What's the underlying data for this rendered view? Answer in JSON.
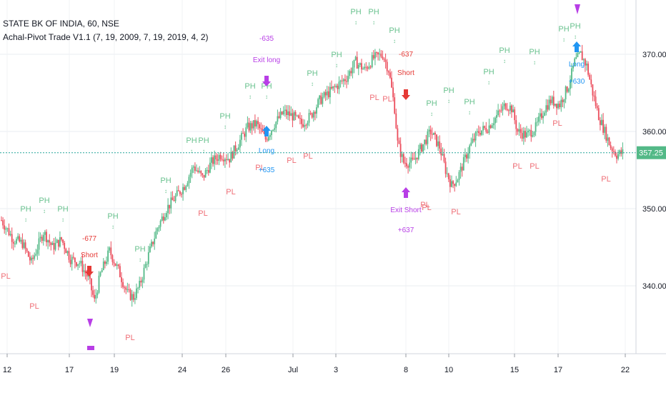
{
  "header": {
    "symbol_line": "STATE BK OF INDIA, 60, NSE",
    "indicator_line": "Achal-Pivot Trade V1.1 (7, 19, 2009, 7, 19, 2019, 4, 2)"
  },
  "colors": {
    "up": "#53b987",
    "down": "#eb4d5c",
    "ph": "#6ac28f",
    "pl": "#ef6f77",
    "long": "#2196f3",
    "short": "#e53935",
    "exit": "#b83ee6",
    "price_line": "#26a69a",
    "last_price_bg": "#53b987"
  },
  "chart_data": {
    "type": "candlestick",
    "ylim": [
      332.0,
      374.0
    ],
    "y_ticks": [
      "340.00",
      "350.00",
      "360.00",
      "370.00"
    ],
    "last_price": "357.25",
    "last_price_value": 357.25,
    "x_labels": [
      "12",
      "17",
      "19",
      "24",
      "26",
      "Jul",
      "3",
      "8",
      "10",
      "15",
      "17",
      "22"
    ],
    "annotations": {
      "long_entry": {
        "text": "Long",
        "value": "+635"
      },
      "exit_long": {
        "text": "Exit long",
        "value": "-635"
      },
      "short_1": {
        "text": "Short",
        "value": "-677"
      },
      "short_2": {
        "text": "Short",
        "value": "-637"
      },
      "exit_short": {
        "text": "Exit Short",
        "value": "+637"
      },
      "long_2": {
        "text": "Long",
        "value": "+630"
      }
    },
    "pivot_labels": {
      "high": "PH",
      "low": "PL"
    }
  }
}
